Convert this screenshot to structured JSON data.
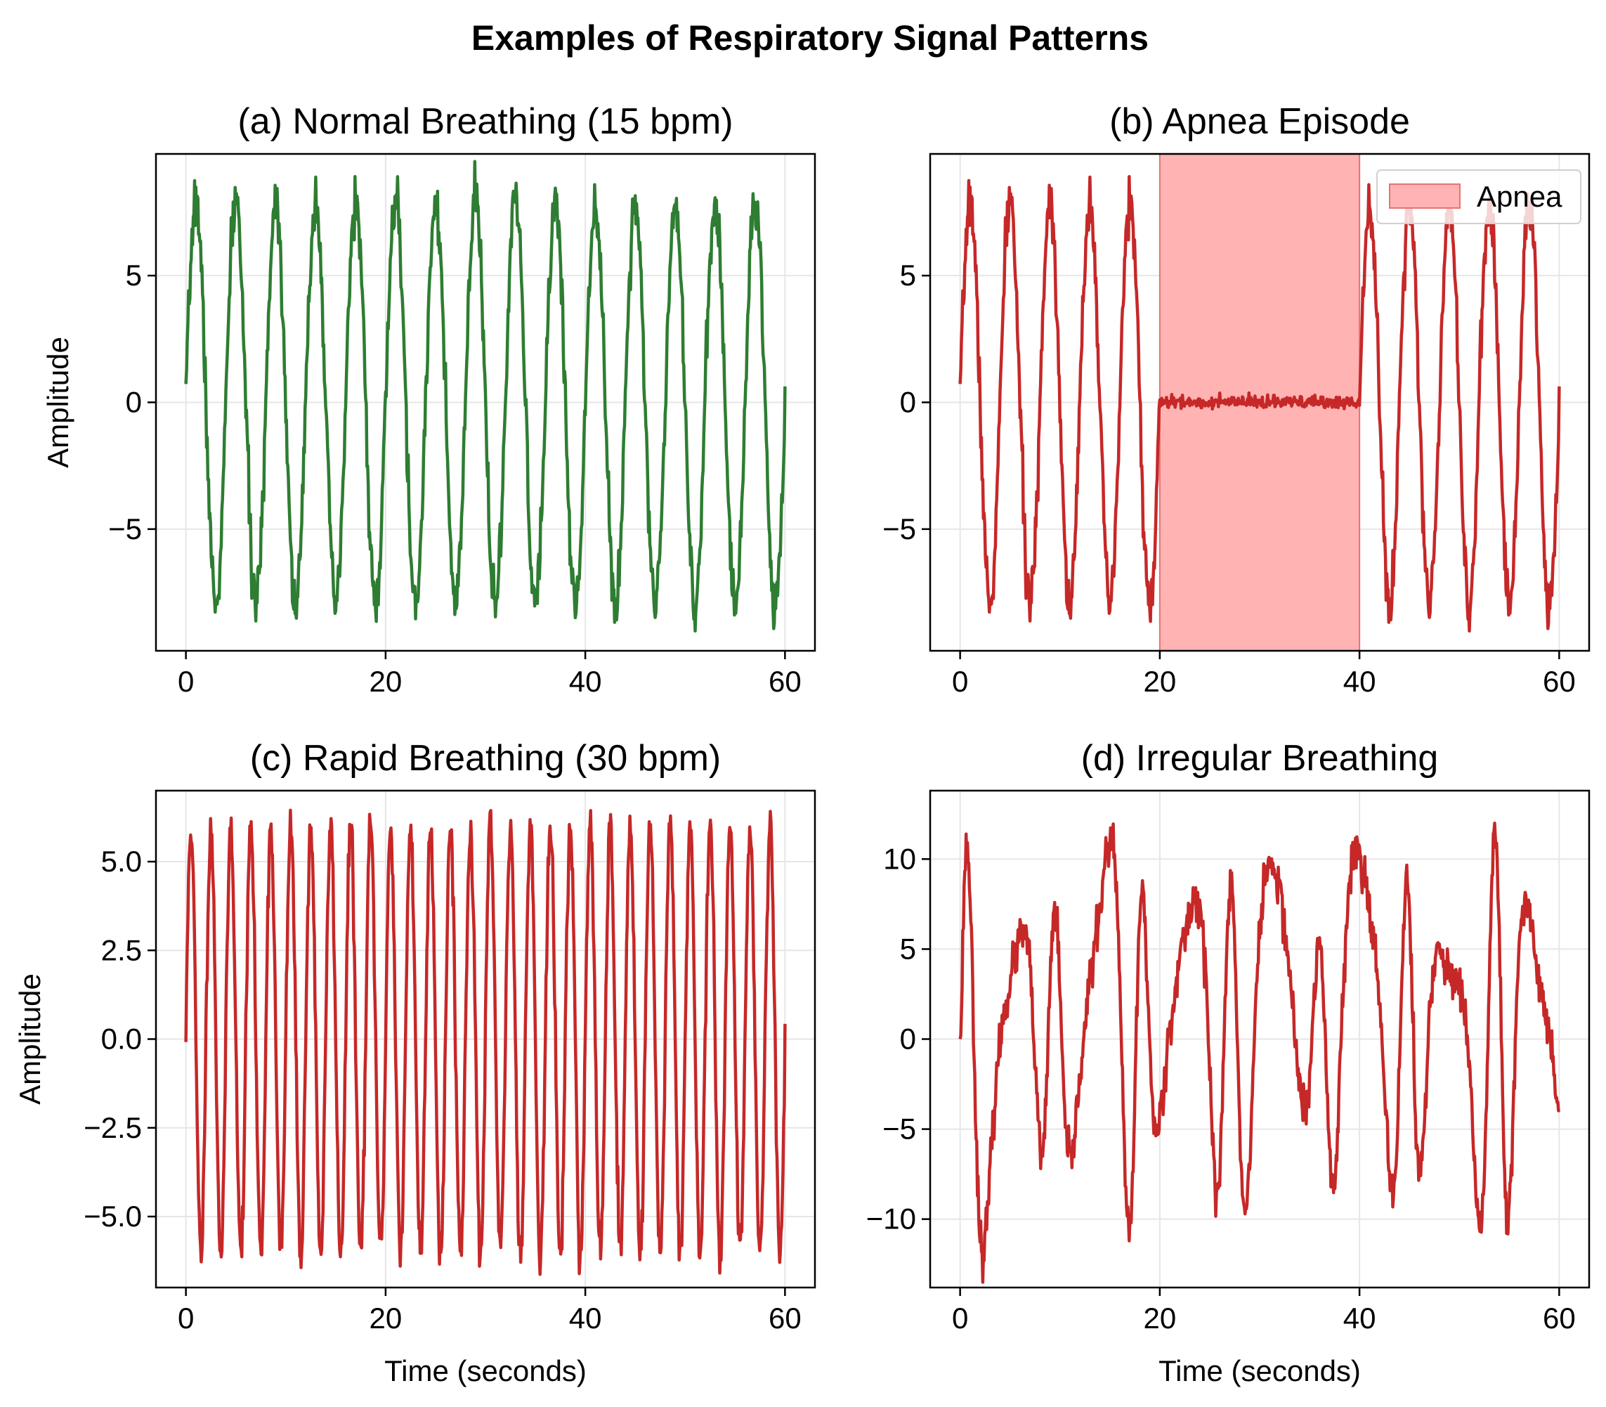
{
  "figure": {
    "title": "Examples of Respiratory Signal Patterns"
  },
  "colors": {
    "green": "#2e7d32",
    "red": "#c62828",
    "apnea_fill": "#ffb3b3",
    "apnea_edge": "#e57373",
    "grid": "#e6e6e6"
  },
  "chart_data": [
    {
      "id": "a",
      "type": "line",
      "title": "(a) Normal Breathing (15 bpm)",
      "xlabel": "",
      "ylabel": "Amplitude",
      "xlim": [
        -3,
        63
      ],
      "ylim": [
        -9.8,
        9.8
      ],
      "xticks": [
        0,
        20,
        40,
        60
      ],
      "xtick_labels": [
        "0",
        "20",
        "40",
        "60"
      ],
      "yticks": [
        -5,
        0,
        5
      ],
      "ytick_labels": [
        "−5",
        "0",
        "5"
      ],
      "grid": true,
      "series": [
        {
          "name": "Normal",
          "color": "#2e7d32",
          "model": {
            "kind": "sine",
            "rate_bpm": 15,
            "amplitude": 8,
            "noise": 0.5,
            "x_start": 0,
            "x_end": 60,
            "seed": 7
          }
        }
      ]
    },
    {
      "id": "b",
      "type": "line",
      "title": "(b) Apnea Episode",
      "xlabel": "",
      "ylabel": "",
      "xlim": [
        -3,
        63
      ],
      "ylim": [
        -9.8,
        9.8
      ],
      "xticks": [
        0,
        20,
        40,
        60
      ],
      "xtick_labels": [
        "0",
        "20",
        "40",
        "60"
      ],
      "yticks": [
        -5,
        0,
        5
      ],
      "ytick_labels": [
        "−5",
        "0",
        "5"
      ],
      "grid": true,
      "legend": {
        "label": "Apnea",
        "location": "top-right"
      },
      "apnea_span": [
        20,
        40
      ],
      "series": [
        {
          "name": "Apnea Episode",
          "color": "#c62828",
          "model": {
            "kind": "sine_apnea",
            "rate_bpm": 15,
            "amplitude": 8,
            "noise": 0.5,
            "apnea_start": 20,
            "apnea_end": 40,
            "x_start": 0,
            "x_end": 60,
            "seed": 7
          }
        }
      ]
    },
    {
      "id": "c",
      "type": "line",
      "title": "(c) Rapid Breathing (30 bpm)",
      "xlabel": "Time (seconds)",
      "ylabel": "Amplitude",
      "xlim": [
        -3,
        63
      ],
      "ylim": [
        -7.0,
        7.0
      ],
      "xticks": [
        0,
        20,
        40,
        60
      ],
      "xtick_labels": [
        "0",
        "20",
        "40",
        "60"
      ],
      "yticks": [
        -5.0,
        -2.5,
        0.0,
        2.5,
        5.0
      ],
      "ytick_labels": [
        "−5.0",
        "−2.5",
        "0.0",
        "2.5",
        "5.0"
      ],
      "grid": true,
      "series": [
        {
          "name": "Rapid",
          "color": "#c62828",
          "model": {
            "kind": "sine",
            "rate_bpm": 30,
            "amplitude": 6,
            "noise": 0.3,
            "x_start": 0,
            "x_end": 60,
            "seed": 11
          }
        }
      ]
    },
    {
      "id": "d",
      "type": "line",
      "title": "(d) Irregular Breathing",
      "xlabel": "Time (seconds)",
      "ylabel": "",
      "xlim": [
        -3,
        63
      ],
      "ylim": [
        -13.8,
        13.8
      ],
      "xticks": [
        0,
        20,
        40,
        60
      ],
      "xtick_labels": [
        "0",
        "20",
        "40",
        "60"
      ],
      "yticks": [
        -10,
        -5,
        0,
        5,
        10
      ],
      "ytick_labels": [
        "−10",
        "−5",
        "0",
        "5",
        "10"
      ],
      "grid": true,
      "series": [
        {
          "name": "Irregular",
          "color": "#c62828",
          "model": {
            "kind": "irregular",
            "x_start": 0,
            "x_end": 60,
            "seed": 23
          }
        }
      ]
    }
  ]
}
